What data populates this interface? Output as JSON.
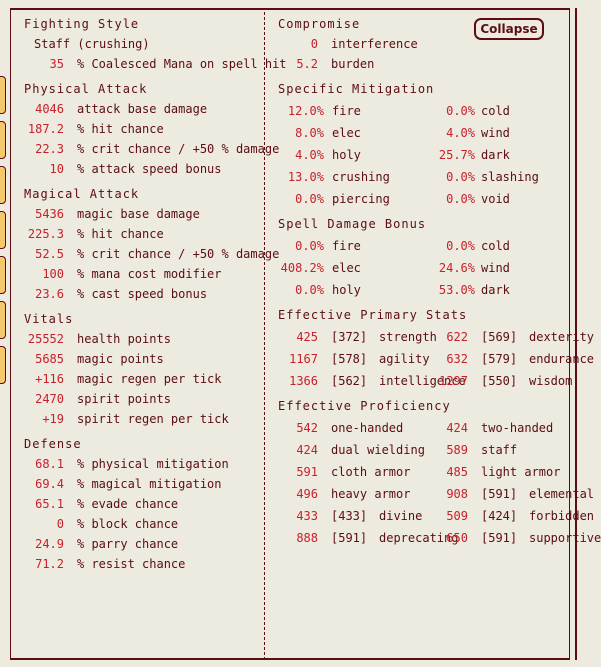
{
  "left": {
    "fighting": {
      "title": "Fighting Style",
      "style": "Staff (crushing)",
      "rows": [
        {
          "v": "35",
          "l": "% Coalesced Mana on spell hit"
        }
      ]
    },
    "physical": {
      "title": "Physical Attack",
      "rows": [
        {
          "v": "4046",
          "l": "attack base damage"
        },
        {
          "v": "187.2",
          "l": "% hit chance"
        },
        {
          "v": "22.3",
          "l": "% crit chance / +50 % damage"
        },
        {
          "v": "10",
          "l": "% attack speed bonus"
        }
      ]
    },
    "magical": {
      "title": "Magical Attack",
      "rows": [
        {
          "v": "5436",
          "l": "magic base damage"
        },
        {
          "v": "225.3",
          "l": "% hit chance"
        },
        {
          "v": "52.5",
          "l": "% crit chance / +50 % damage"
        },
        {
          "v": "100",
          "l": "% mana cost modifier"
        },
        {
          "v": "23.6",
          "l": "% cast speed bonus"
        }
      ]
    },
    "vitals": {
      "title": "Vitals",
      "rows": [
        {
          "v": "25552",
          "l": "health points"
        },
        {
          "v": "5685",
          "l": "magic points"
        },
        {
          "v": "+116",
          "l": "magic regen per tick"
        },
        {
          "v": "2470",
          "l": "spirit points"
        },
        {
          "v": "+19",
          "l": "spirit regen per tick"
        }
      ]
    },
    "defense": {
      "title": "Defense",
      "rows": [
        {
          "v": "68.1",
          "l": "% physical mitigation"
        },
        {
          "v": "69.4",
          "l": "% magical mitigation"
        },
        {
          "v": "65.1",
          "l": "% evade chance"
        },
        {
          "v": "0",
          "l": "% block chance"
        },
        {
          "v": "24.9",
          "l": "% parry chance"
        },
        {
          "v": "71.2",
          "l": "% resist chance"
        }
      ]
    }
  },
  "right": {
    "collapse_label": "Collapse",
    "compromise": {
      "title": "Compromise",
      "rows": [
        {
          "v": "0",
          "l": "interference"
        },
        {
          "v": "5.2",
          "l": "burden"
        }
      ]
    },
    "mitigation": {
      "title": "Specific Mitigation",
      "rows": [
        {
          "v1": "12.0%",
          "l1": "fire",
          "v2": "0.0%",
          "l2": "cold"
        },
        {
          "v1": "8.0%",
          "l1": "elec",
          "v2": "4.0%",
          "l2": "wind"
        },
        {
          "v1": "4.0%",
          "l1": "holy",
          "v2": "25.7%",
          "l2": "dark"
        },
        {
          "v1": "13.0%",
          "l1": "crushing",
          "v2": "0.0%",
          "l2": "slashing"
        },
        {
          "v1": "0.0%",
          "l1": "piercing",
          "v2": "0.0%",
          "l2": "void"
        }
      ]
    },
    "spell": {
      "title": "Spell Damage Bonus",
      "rows": [
        {
          "v1": "0.0%",
          "l1": "fire",
          "v2": "0.0%",
          "l2": "cold"
        },
        {
          "v1": "408.2%",
          "l1": "elec",
          "v2": "24.6%",
          "l2": "wind"
        },
        {
          "v1": "0.0%",
          "l1": "holy",
          "v2": "53.0%",
          "l2": "dark"
        }
      ]
    },
    "primary": {
      "title": "Effective Primary Stats",
      "rows": [
        {
          "v1": "425",
          "b1": "[372]",
          "l1": "strength",
          "v2": "622",
          "b2": "[569]",
          "l2": "dexterity"
        },
        {
          "v1": "1167",
          "b1": "[578]",
          "l1": "agility",
          "v2": "632",
          "b2": "[579]",
          "l2": "endurance"
        },
        {
          "v1": "1366",
          "b1": "[562]",
          "l1": "intelligence",
          "v2": "1297",
          "b2": "[550]",
          "l2": "wisdom"
        }
      ]
    },
    "proficiency": {
      "title": "Effective Proficiency",
      "rows": [
        {
          "v1": "542",
          "l1": "one-handed",
          "v2": "424",
          "l2": "two-handed"
        },
        {
          "v1": "424",
          "l1": "dual wielding",
          "v2": "589",
          "l2": "staff"
        },
        {
          "v1": "591",
          "l1": "cloth armor",
          "v2": "485",
          "l2": "light armor"
        },
        {
          "v1": "496",
          "l1": "heavy armor",
          "v2": "908",
          "b2": "[591]",
          "l2": "elemental"
        },
        {
          "v1": "433",
          "b1": "[433]",
          "l1": "divine",
          "v2": "509",
          "b2": "[424]",
          "l2": "forbidden"
        },
        {
          "v1": "888",
          "b1": "[591]",
          "l1": "deprecating",
          "v2": "650",
          "b2": "[591]",
          "l2": "supportive"
        }
      ]
    }
  },
  "colors": {
    "text": "#5C0D12",
    "value": "#C8202A",
    "background": "#EDEADF",
    "tab": "#F5C96B"
  }
}
